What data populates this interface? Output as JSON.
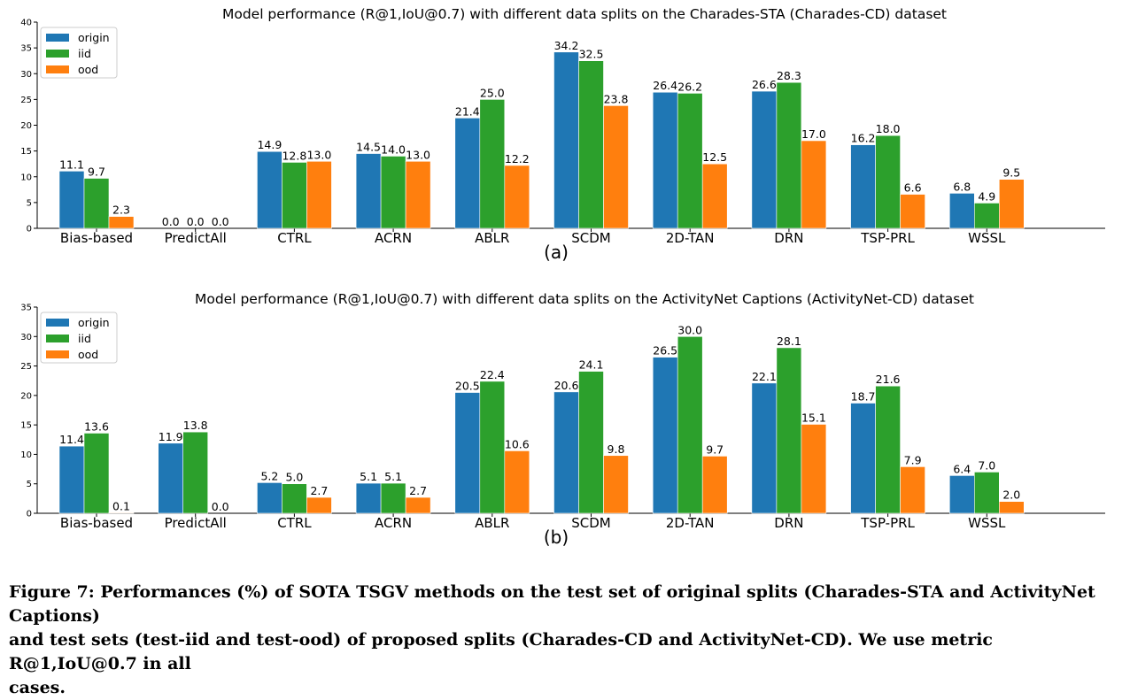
{
  "chart_data": [
    {
      "type": "bar",
      "title": "Model performance (R@1,IoU@0.7) with different data splits on the Charades-STA (Charades-CD) dataset",
      "panel_label": "(a)",
      "categories": [
        "Bias-based",
        "PredictAll",
        "CTRL",
        "ACRN",
        "ABLR",
        "SCDM",
        "2D-TAN",
        "DRN",
        "TSP-PRL",
        "WSSL"
      ],
      "series": [
        {
          "name": "origin",
          "color": "#1f77b4",
          "values": [
            11.1,
            0.0,
            14.9,
            14.5,
            21.4,
            34.2,
            26.4,
            26.6,
            16.2,
            6.8
          ]
        },
        {
          "name": "iid",
          "color": "#2ca02c",
          "values": [
            9.7,
            0.0,
            12.8,
            14.0,
            25.0,
            32.5,
            26.2,
            28.3,
            18.0,
            4.9
          ]
        },
        {
          "name": "ood",
          "color": "#ff7f0e",
          "values": [
            2.3,
            0.0,
            13.0,
            13.0,
            12.2,
            23.8,
            12.5,
            17.0,
            6.6,
            9.5
          ]
        }
      ],
      "ylim": [
        0,
        40
      ],
      "yticks": [
        0,
        5,
        10,
        15,
        20,
        25,
        30,
        35,
        40
      ],
      "legend": "top-left",
      "grid": false
    },
    {
      "type": "bar",
      "title": "Model performance (R@1,IoU@0.7) with different data splits on the ActivityNet Captions (ActivityNet-CD) dataset",
      "panel_label": "(b)",
      "categories": [
        "Bias-based",
        "PredictAll",
        "CTRL",
        "ACRN",
        "ABLR",
        "SCDM",
        "2D-TAN",
        "DRN",
        "TSP-PRL",
        "WSSL"
      ],
      "series": [
        {
          "name": "origin",
          "color": "#1f77b4",
          "values": [
            11.4,
            11.9,
            5.2,
            5.1,
            20.5,
            20.6,
            26.5,
            22.1,
            18.7,
            6.4
          ]
        },
        {
          "name": "iid",
          "color": "#2ca02c",
          "values": [
            13.6,
            13.8,
            5.0,
            5.1,
            22.4,
            24.1,
            30.0,
            28.1,
            21.6,
            7.0
          ]
        },
        {
          "name": "ood",
          "color": "#ff7f0e",
          "values": [
            0.1,
            0.0,
            2.7,
            2.7,
            10.6,
            9.8,
            9.7,
            15.1,
            7.9,
            2.0
          ]
        }
      ],
      "ylim": [
        0,
        35
      ],
      "yticks": [
        0,
        5,
        10,
        15,
        20,
        25,
        30,
        35
      ],
      "legend": "top-left",
      "grid": false
    }
  ],
  "caption": {
    "line1": "Figure 7: Performances (%) of SOTA TSGV methods on the test set of original splits (Charades-STA and ActivityNet Captions)",
    "line2": "and test sets (test-iid and test-ood) of proposed splits (Charades-CD and ActivityNet-CD). We use metric R@1,IoU@0.7 in all",
    "line3": "cases."
  }
}
